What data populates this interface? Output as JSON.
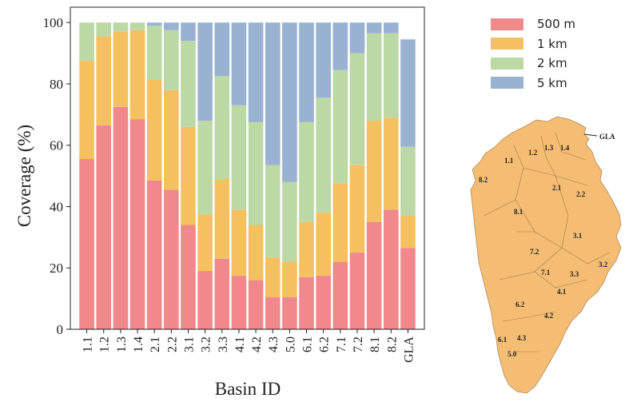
{
  "chart_data": {
    "type": "bar",
    "stacked": true,
    "xlabel": "Basin ID",
    "ylabel": "Coverage (%)",
    "ylim": [
      0,
      105
    ],
    "yticks": [
      0,
      20,
      40,
      60,
      80,
      100
    ],
    "categories": [
      "1.1",
      "1.2",
      "1.3",
      "1.4",
      "2.1",
      "2.2",
      "3.1",
      "3.2",
      "3.3",
      "4.1",
      "4.2",
      "4.3",
      "5.0",
      "6.1",
      "6.2",
      "7.1",
      "7.2",
      "8.1",
      "8.2",
      "GLA"
    ],
    "series": [
      {
        "name": "500 m",
        "color": "#f0888c",
        "values": [
          55.5,
          66.5,
          72.5,
          68.5,
          48.5,
          45.5,
          34,
          19,
          23,
          17.5,
          16,
          10.5,
          10.5,
          17,
          17.5,
          22,
          25,
          35,
          39,
          26.5
        ]
      },
      {
        "name": "1 km",
        "color": "#f5c060",
        "values": [
          32,
          29,
          24.5,
          29,
          33,
          32.5,
          32,
          18.5,
          26,
          21.5,
          18,
          13,
          11.5,
          18,
          20.5,
          25.5,
          28.5,
          33,
          30,
          10.5
        ]
      },
      {
        "name": "2 km",
        "color": "#bcd8a4",
        "values": [
          12.5,
          4.5,
          3,
          2.5,
          17.5,
          19.5,
          28,
          30.5,
          33.5,
          34,
          33.5,
          30,
          26,
          32.5,
          37.5,
          37,
          36.5,
          28.5,
          27.5,
          22.5
        ]
      },
      {
        "name": "5 km",
        "color": "#9ab2d2",
        "values": [
          0,
          0,
          0,
          0,
          1,
          2.5,
          6,
          32,
          17.5,
          27,
          32.5,
          46.5,
          52,
          32.5,
          24.5,
          15.5,
          10,
          3.5,
          3.5,
          35
        ]
      }
    ],
    "legend_position": "right-top",
    "grid": false
  },
  "map": {
    "labels": [
      "GLA",
      "1.1",
      "1.2",
      "1.3",
      "1.4",
      "8.2",
      "2.1",
      "2.2",
      "8.1",
      "3.1",
      "7.2",
      "3.2",
      "7.1",
      "3.3",
      "4.1",
      "6.2",
      "4.2",
      "6.1",
      "4.3",
      "5.0"
    ],
    "fill": "#f5bd74"
  }
}
